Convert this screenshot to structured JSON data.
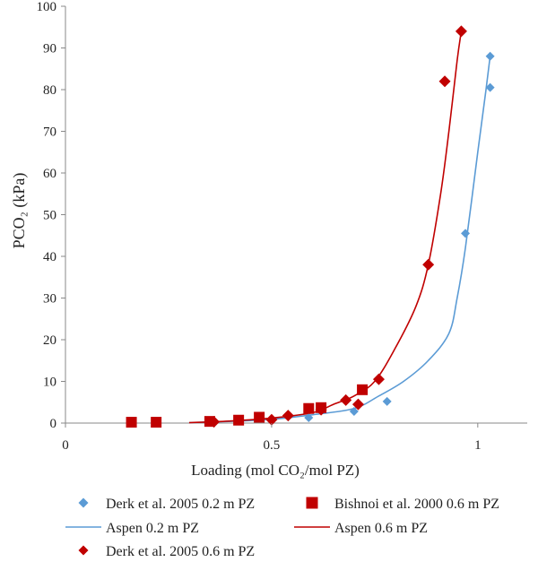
{
  "chart_data": {
    "type": "scatter",
    "xlabel": "Loading (mol CO₂/mol PZ)",
    "ylabel": "PCO₂ (kPa)",
    "xlim": [
      0,
      1.12
    ],
    "ylim": [
      0,
      100
    ],
    "x_ticks": [
      0,
      0.5,
      1
    ],
    "y_ticks": [
      0,
      10,
      20,
      30,
      40,
      50,
      60,
      70,
      80,
      90,
      100
    ],
    "grid": false,
    "legend_position": "bottom",
    "series": [
      {
        "name": "Derk et al. 2005 0.2 m PZ",
        "kind": "points",
        "marker": "diamond",
        "color": "#5b9bd5",
        "x": [
          0.59,
          0.7,
          0.78,
          0.97,
          1.03,
          1.03
        ],
        "y": [
          1.3,
          2.8,
          5.2,
          45.5,
          80.5,
          88.0
        ]
      },
      {
        "name": "Bishnoi et al. 2000 0.6 m PZ",
        "kind": "points",
        "marker": "square",
        "color": "#c00000",
        "x": [
          0.16,
          0.22,
          0.35,
          0.42,
          0.47,
          0.59,
          0.62,
          0.72
        ],
        "y": [
          0.2,
          0.2,
          0.4,
          0.7,
          1.4,
          3.5,
          3.7,
          8.0
        ]
      },
      {
        "name": "Aspen 0.2 m PZ",
        "kind": "line",
        "color": "#5b9bd5",
        "x": [
          0.3,
          0.4,
          0.5,
          0.6,
          0.7,
          0.76,
          0.82,
          0.88,
          0.93,
          0.95,
          0.97,
          1.0,
          1.02,
          1.03
        ],
        "y": [
          0.1,
          0.4,
          0.9,
          2.0,
          3.5,
          6.5,
          10.0,
          15.0,
          21.5,
          30.0,
          42.0,
          65.0,
          80.0,
          88.0
        ]
      },
      {
        "name": "Aspen 0.6 m PZ",
        "kind": "line",
        "color": "#c00000",
        "x": [
          0.3,
          0.4,
          0.5,
          0.6,
          0.65,
          0.7,
          0.75,
          0.8,
          0.85,
          0.88,
          0.91,
          0.93,
          0.95,
          0.96
        ],
        "y": [
          0.1,
          0.5,
          1.2,
          2.5,
          4.5,
          6.5,
          10.0,
          18.0,
          28.0,
          38.0,
          55.0,
          70.0,
          87.0,
          94.0
        ]
      },
      {
        "name": "Derk et al. 2005 0.6 m PZ",
        "kind": "points",
        "marker": "diamond",
        "color": "#c00000",
        "x": [
          0.36,
          0.5,
          0.54,
          0.62,
          0.68,
          0.71,
          0.76,
          0.88,
          0.92,
          0.96
        ],
        "y": [
          0.3,
          0.8,
          1.8,
          3.2,
          5.5,
          4.5,
          10.5,
          38.0,
          82.0,
          94.0
        ]
      }
    ]
  }
}
